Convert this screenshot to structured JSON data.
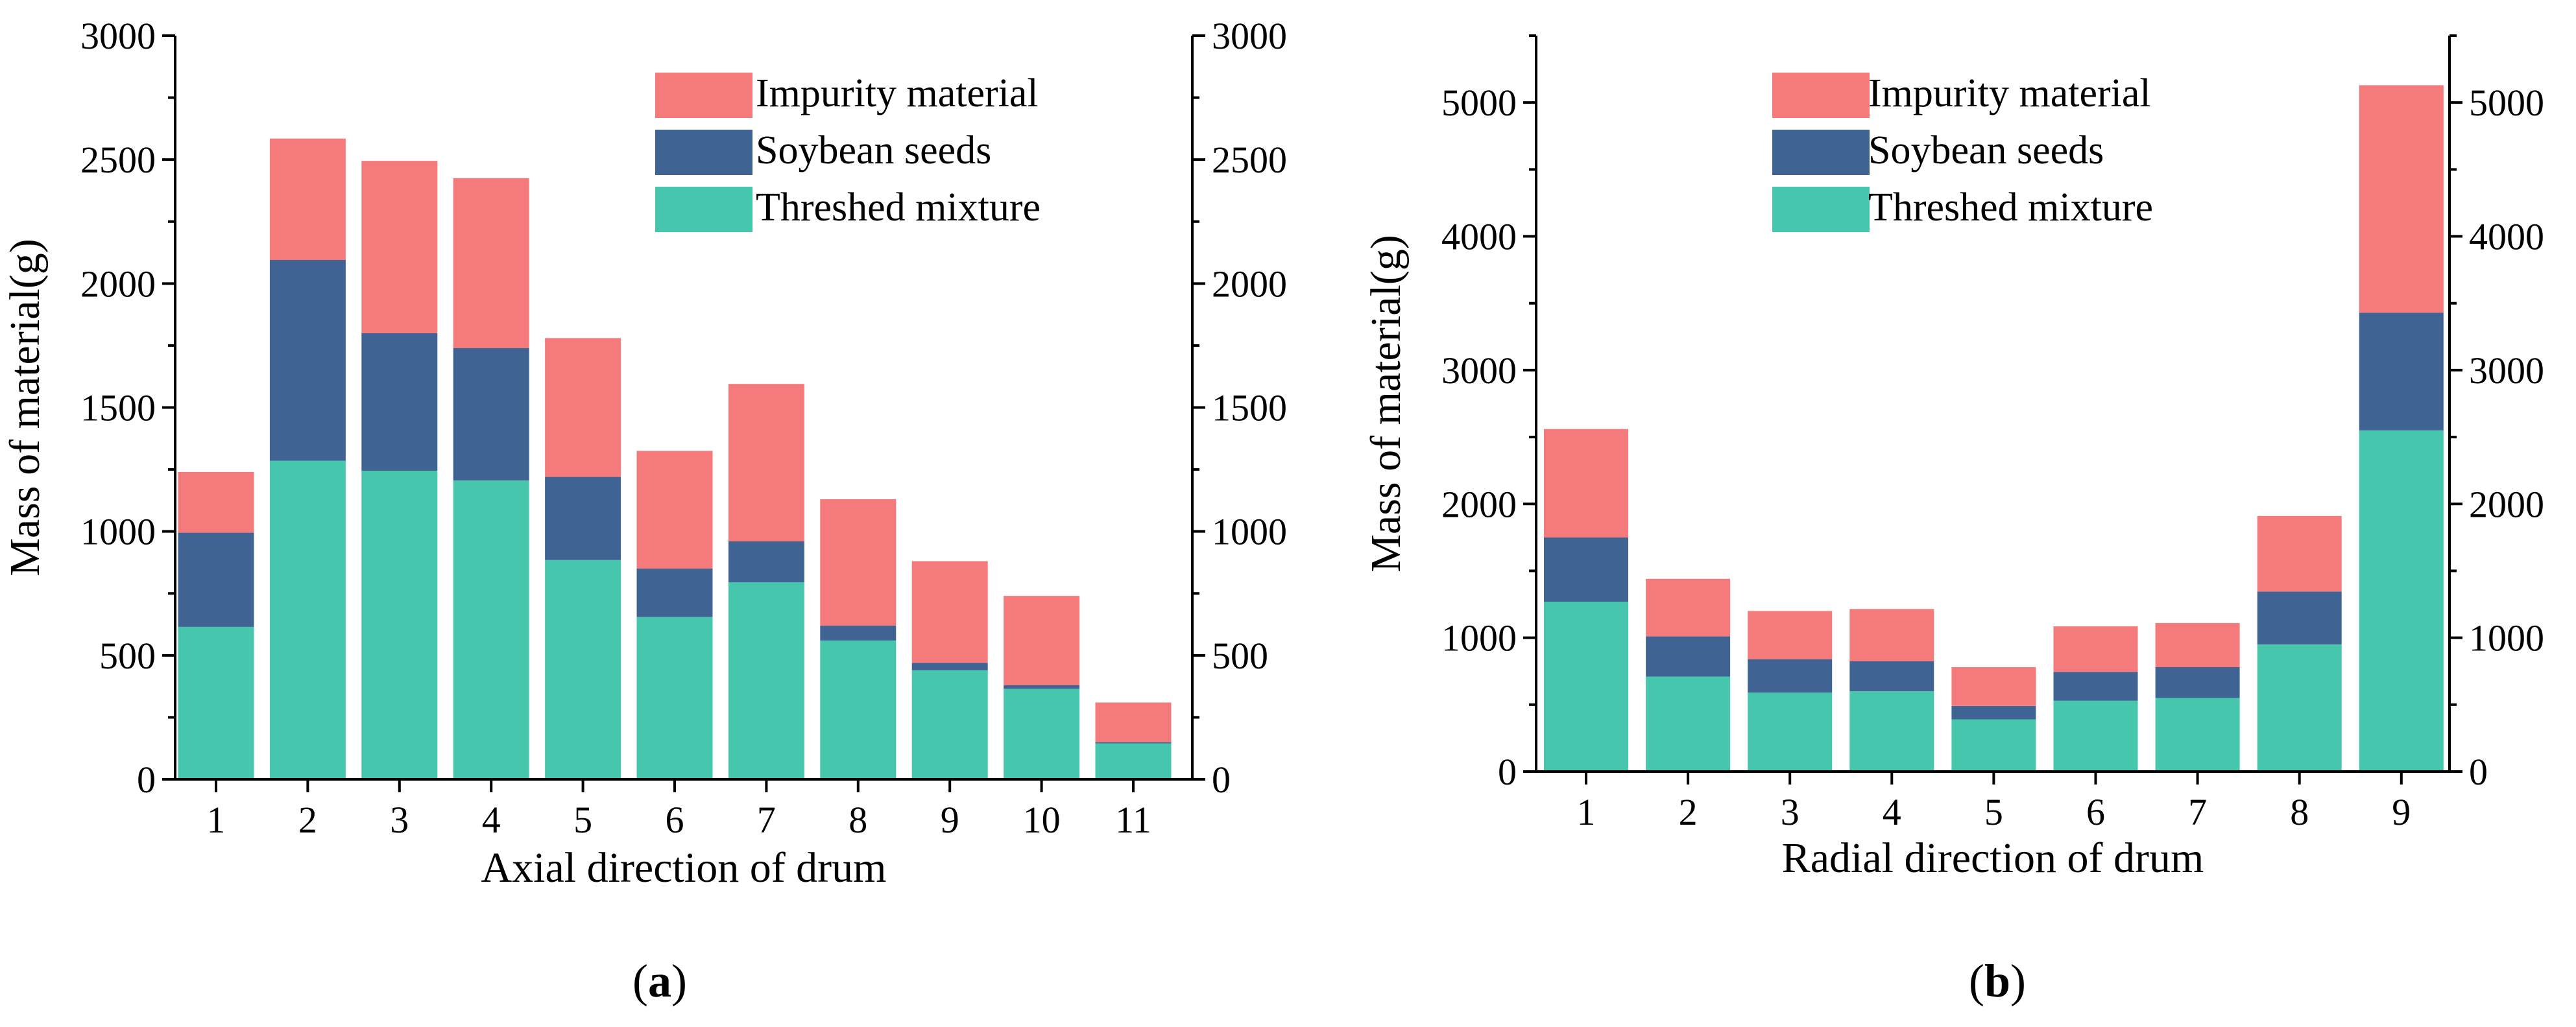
{
  "colors": {
    "impurity": "#F47A7C",
    "soybean": "#3F6494",
    "threshed": "#47C6AE",
    "axis": "#000000"
  },
  "chart_data": [
    {
      "type": "bar",
      "stacked": true,
      "panel_label": "a",
      "xlabel": "Axial direction of drum",
      "ylabel": "Mass of material(g)",
      "ylim": [
        0,
        3000
      ],
      "yticks": [
        0,
        500,
        1000,
        1500,
        2000,
        2500,
        3000
      ],
      "ytick_labels": [
        "0",
        "500",
        "1000",
        "1500",
        "2000",
        "2500",
        "3000"
      ],
      "categories": [
        "1",
        "2",
        "3",
        "4",
        "5",
        "6",
        "7",
        "8",
        "9",
        "10",
        "11"
      ],
      "legend": [
        "Impurity material",
        "Soybean seeds",
        "Threshed mixture"
      ],
      "legend_position": "top-right",
      "series": [
        {
          "name": "Threshed mixture",
          "color_key": "threshed",
          "values": [
            615,
            1285,
            1245,
            1205,
            885,
            655,
            795,
            560,
            440,
            365,
            145
          ]
        },
        {
          "name": "Soybean seeds",
          "color_key": "soybean",
          "values": [
            380,
            810,
            555,
            535,
            335,
            195,
            165,
            60,
            30,
            15,
            5
          ]
        },
        {
          "name": "Impurity material",
          "color_key": "impurity",
          "values": [
            245,
            490,
            695,
            685,
            560,
            475,
            635,
            510,
            410,
            360,
            160
          ]
        }
      ],
      "totals": [
        1240,
        2585,
        2495,
        2425,
        1780,
        1325,
        1595,
        1130,
        880,
        740,
        310
      ]
    },
    {
      "type": "bar",
      "stacked": true,
      "panel_label": "b",
      "xlabel": "Radial direction of drum",
      "ylabel": "Mass of material(g)",
      "ylim": [
        0,
        5500
      ],
      "yticks": [
        0,
        1000,
        2000,
        3000,
        4000,
        5000
      ],
      "ytick_labels": [
        "0",
        "1000",
        "2000",
        "3000",
        "4000",
        "5000"
      ],
      "categories": [
        "1",
        "2",
        "3",
        "4",
        "5",
        "6",
        "7",
        "8",
        "9"
      ],
      "legend": [
        "Impurity material",
        "Soybean seeds",
        "Threshed mixture"
      ],
      "legend_position": "top-right",
      "series": [
        {
          "name": "Threshed mixture",
          "color_key": "threshed",
          "values": [
            1270,
            710,
            590,
            600,
            390,
            530,
            550,
            950,
            2550
          ]
        },
        {
          "name": "Soybean seeds",
          "color_key": "soybean",
          "values": [
            480,
            300,
            250,
            225,
            100,
            215,
            230,
            395,
            880
          ]
        },
        {
          "name": "Impurity material",
          "color_key": "impurity",
          "values": [
            810,
            430,
            360,
            390,
            290,
            340,
            330,
            565,
            1700
          ]
        }
      ],
      "totals": [
        2560,
        1440,
        1200,
        1215,
        780,
        1085,
        1110,
        1910,
        5130
      ]
    }
  ]
}
